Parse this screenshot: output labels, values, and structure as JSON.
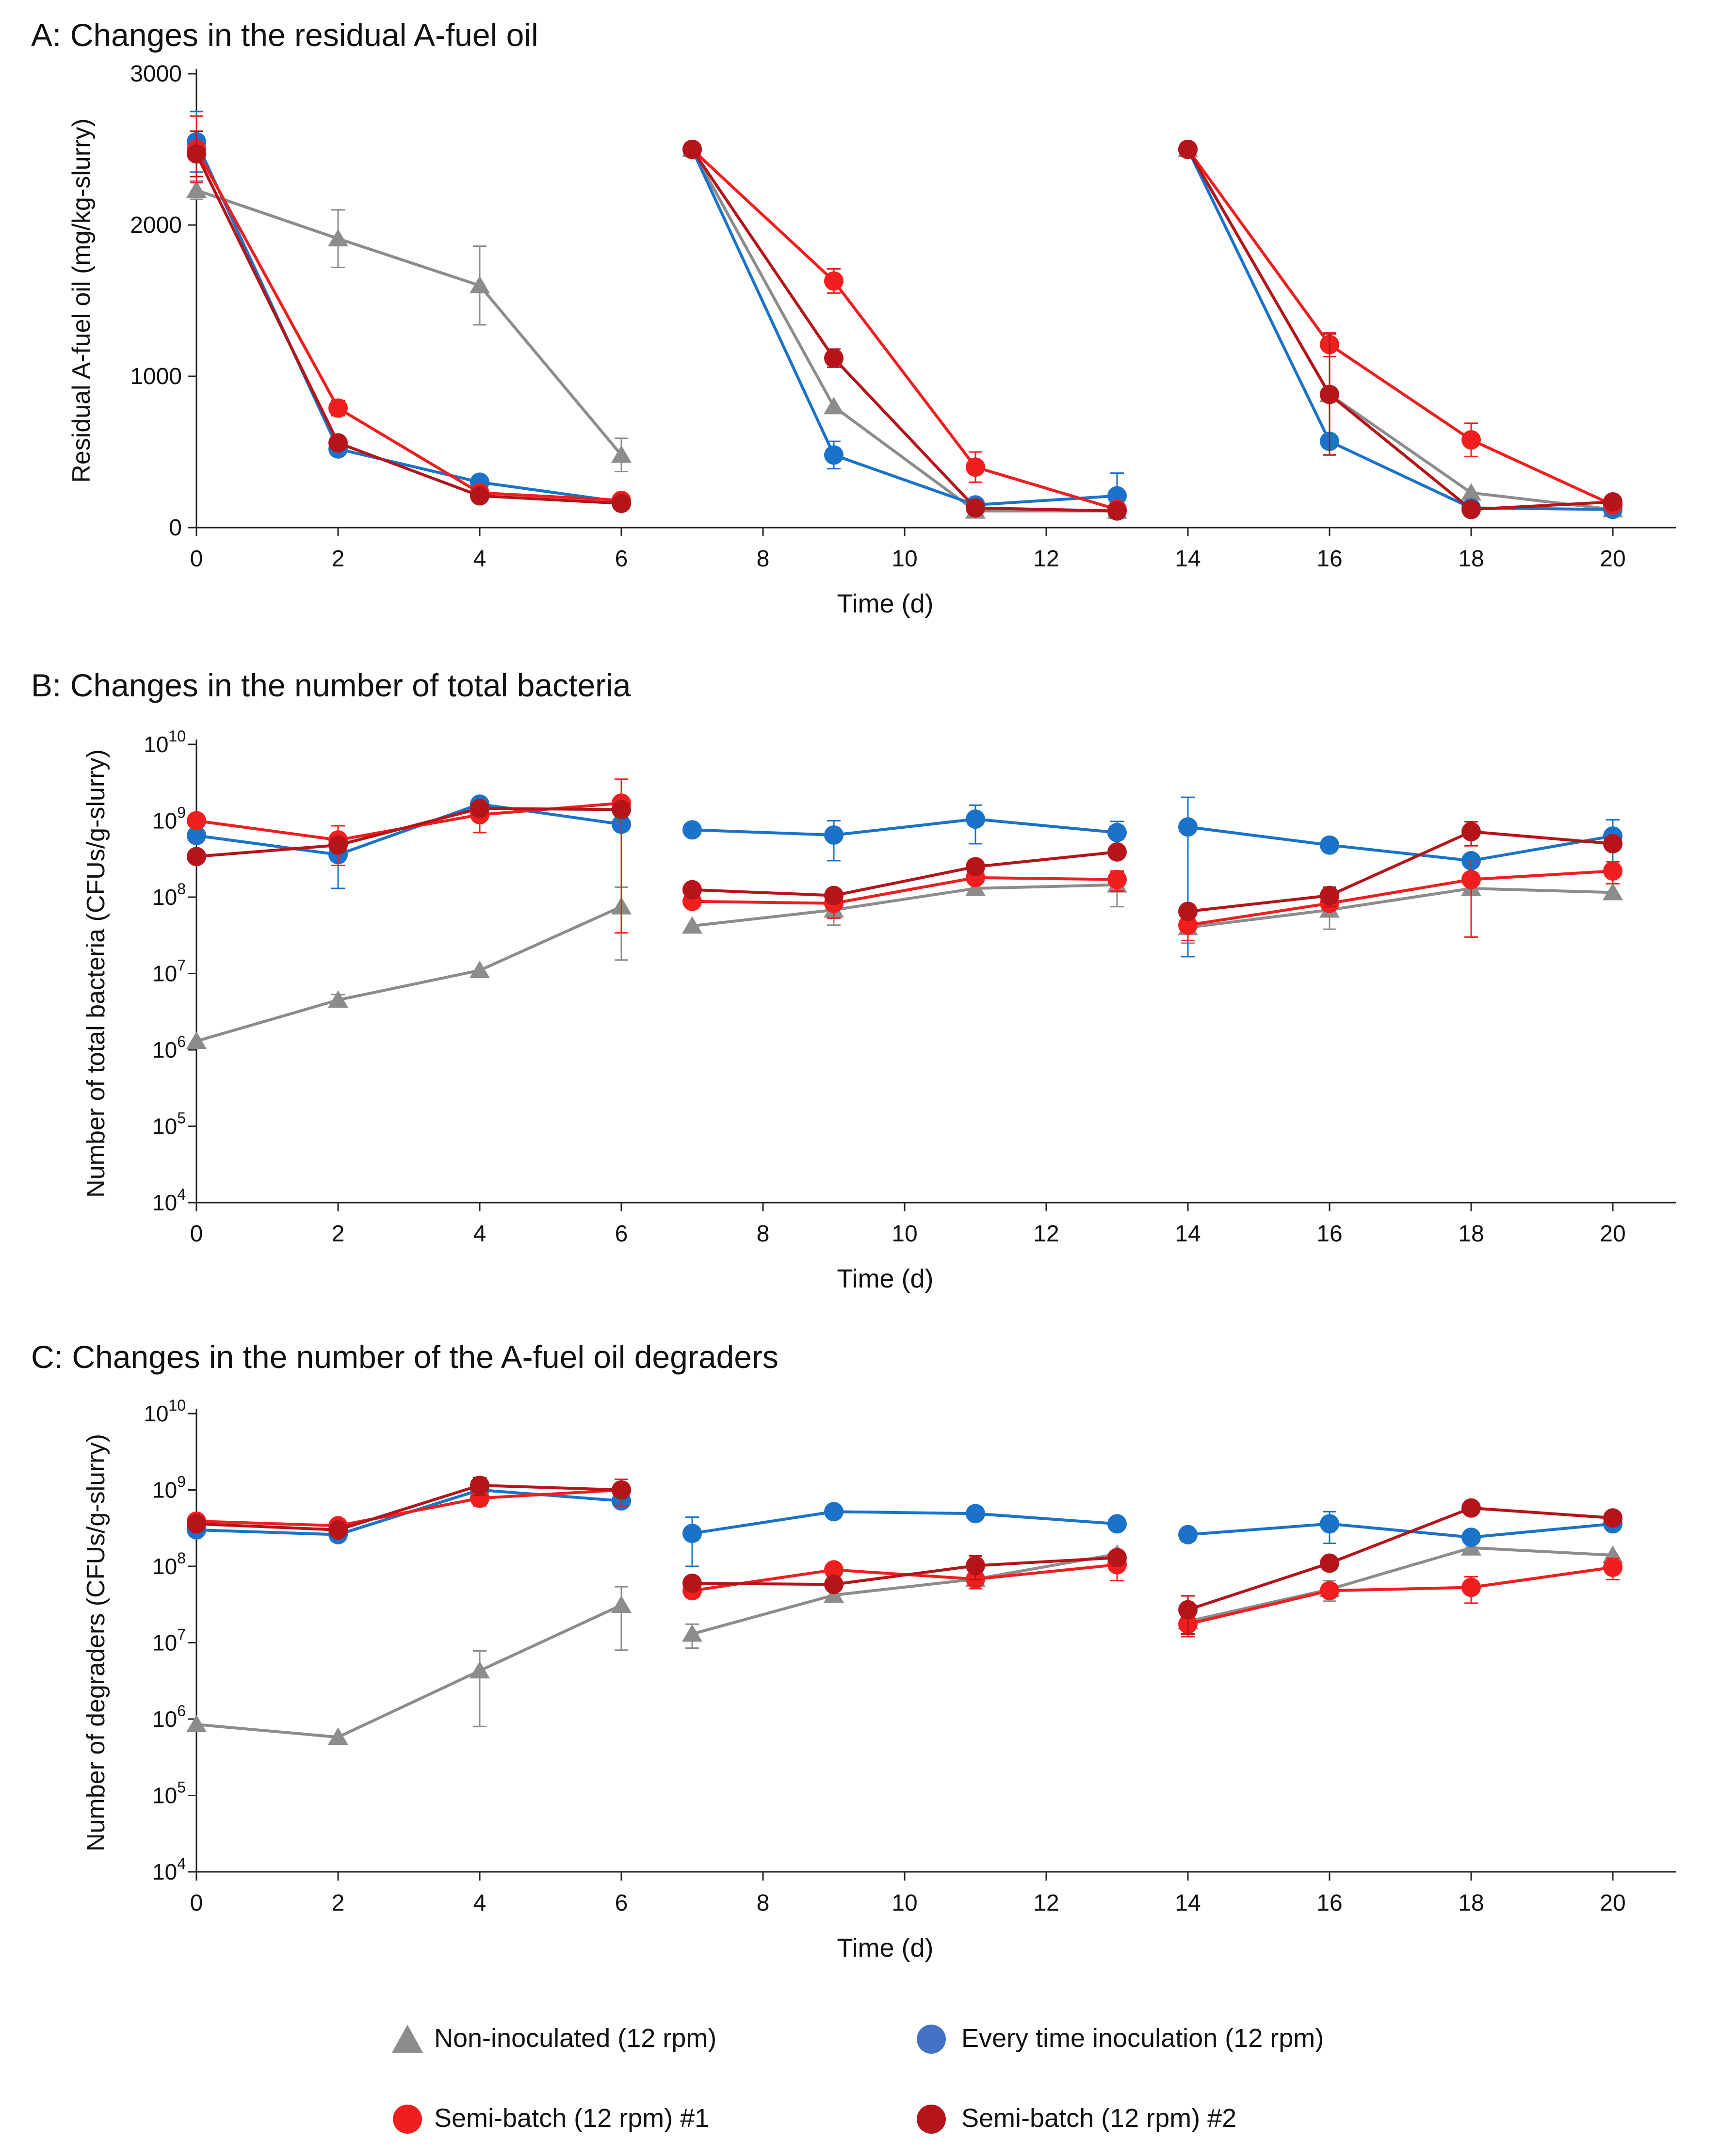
{
  "colors": {
    "non_inoculated": "#8c8c8c",
    "every_time": "#1a73c8",
    "semi1": "#f01e1e",
    "semi2": "#b4141a",
    "legend_every_time": "#4472c4"
  },
  "legend": {
    "non_inoculated": "Non-inoculated (12 rpm)",
    "every_time": "Every time inoculation (12 rpm)",
    "semi1": "Semi-batch (12 rpm) #1",
    "semi2": "Semi-batch (12 rpm) #2"
  },
  "chart_data": [
    {
      "id": "A",
      "type": "line",
      "title": "A: Changes in the residual A-fuel oil",
      "xlabel": "Time (d)",
      "ylabel": "Residual A-fuel oil (mg/kg-slurry)",
      "xlim": [
        0,
        21
      ],
      "xticks": [
        0,
        2,
        4,
        6,
        8,
        10,
        12,
        14,
        16,
        18,
        20
      ],
      "yscale": "linear",
      "ylim": [
        0,
        3000
      ],
      "yticks": [
        {
          "value": 0,
          "label": "0"
        },
        {
          "value": 1000,
          "label": "1000"
        },
        {
          "value": 2000,
          "label": "2000"
        },
        {
          "value": 3000,
          "label": "3000"
        }
      ],
      "series": [
        {
          "key": "non_inoculated",
          "marker": "triangle",
          "segments": [
            {
              "x": [
                0,
                2,
                4,
                6
              ],
              "y": [
                2230,
                1910,
                1600,
                480
              ],
              "err": [
                60,
                190,
                260,
                110
              ]
            },
            {
              "x": [
                7,
                9,
                11,
                13
              ],
              "y": [
                2500,
                800,
                110,
                110
              ],
              "err": [
                0,
                0,
                0,
                0
              ]
            },
            {
              "x": [
                14,
                16,
                18,
                20
              ],
              "y": [
                2500,
                880,
                230,
                120
              ],
              "err": [
                0,
                0,
                0,
                0
              ]
            }
          ]
        },
        {
          "key": "every_time",
          "marker": "circle",
          "segments": [
            {
              "x": [
                0,
                2,
                4,
                6
              ],
              "y": [
                2550,
                520,
                300,
                170
              ],
              "err": [
                200,
                0,
                0,
                0
              ]
            },
            {
              "x": [
                7,
                9,
                11,
                13
              ],
              "y": [
                2500,
                480,
                150,
                210
              ],
              "err": [
                0,
                90,
                0,
                150
              ]
            },
            {
              "x": [
                14,
                16,
                18,
                20
              ],
              "y": [
                2500,
                570,
                130,
                120
              ],
              "err": [
                0,
                0,
                0,
                0
              ]
            }
          ]
        },
        {
          "key": "semi1",
          "marker": "circle",
          "segments": [
            {
              "x": [
                0,
                2,
                4,
                6
              ],
              "y": [
                2500,
                790,
                230,
                180
              ],
              "err": [
                220,
                50,
                0,
                0
              ]
            },
            {
              "x": [
                7,
                9,
                11,
                13
              ],
              "y": [
                2500,
                1630,
                400,
                120
              ],
              "err": [
                0,
                80,
                100,
                0
              ]
            },
            {
              "x": [
                14,
                16,
                18,
                20
              ],
              "y": [
                2500,
                1210,
                580,
                150
              ],
              "err": [
                0,
                80,
                110,
                0
              ]
            }
          ]
        },
        {
          "key": "semi2",
          "marker": "circle",
          "segments": [
            {
              "x": [
                0,
                2,
                4,
                6
              ],
              "y": [
                2470,
                560,
                210,
                160
              ],
              "err": [
                150,
                0,
                0,
                0
              ]
            },
            {
              "x": [
                7,
                9,
                11,
                13
              ],
              "y": [
                2500,
                1120,
                130,
                110
              ],
              "err": [
                0,
                60,
                0,
                0
              ]
            },
            {
              "x": [
                14,
                16,
                18,
                20
              ],
              "y": [
                2500,
                880,
                120,
                170
              ],
              "err": [
                0,
                400,
                0,
                0
              ]
            }
          ]
        }
      ]
    },
    {
      "id": "B",
      "type": "line",
      "title": "B: Changes in the number of total bacteria",
      "xlabel": "Time (d)",
      "ylabel": "Number of total bacteria (CFUs/g-slurry)",
      "xlim": [
        0,
        21
      ],
      "xticks": [
        0,
        2,
        4,
        6,
        8,
        10,
        12,
        14,
        16,
        18,
        20
      ],
      "yscale": "log",
      "ylim": [
        4,
        10
      ],
      "yticks": [
        {
          "value": 4,
          "base": "10",
          "exp": "4"
        },
        {
          "value": 5,
          "base": "10",
          "exp": "5"
        },
        {
          "value": 6,
          "base": "10",
          "exp": "6"
        },
        {
          "value": 7,
          "base": "10",
          "exp": "7"
        },
        {
          "value": 8,
          "base": "10",
          "exp": "8"
        },
        {
          "value": 9,
          "base": "10",
          "exp": "9"
        },
        {
          "value": 10,
          "base": "10",
          "exp": "10"
        }
      ],
      "series": [
        {
          "key": "non_inoculated",
          "marker": "triangle",
          "segments": [
            {
              "x": [
                0,
                2,
                4,
                6
              ],
              "y": [
                1300000.0,
                4500000.0,
                11000000.0,
                75000000.0
              ],
              "err": [
                0,
                800000.0,
                0,
                60000000.0
              ]
            },
            {
              "x": [
                7,
                9,
                11,
                13
              ],
              "y": [
                42000000.0,
                68000000.0,
                130000000.0,
                145000000.0
              ],
              "err": [
                0,
                25000000.0,
                0,
                70000000.0
              ]
            },
            {
              "x": [
                14,
                16,
                18,
                20
              ],
              "y": [
                40000000.0,
                68000000.0,
                130000000.0,
                115000000.0
              ],
              "err": [
                15000000.0,
                30000000.0,
                0,
                0
              ]
            }
          ]
        },
        {
          "key": "every_time",
          "marker": "circle",
          "segments": [
            {
              "x": [
                0,
                2,
                4,
                6
              ],
              "y": [
                640000000.0,
                360000000.0,
                1650000000.0,
                900000000.0
              ],
              "err": [
                0,
                230000000.0,
                0,
                0
              ]
            },
            {
              "x": [
                7,
                9,
                11,
                13
              ],
              "y": [
                760000000.0,
                650000000.0,
                1050000000.0,
                700000000.0
              ],
              "err": [
                0,
                350000000.0,
                550000000.0,
                280000000.0
              ]
            },
            {
              "x": [
                14,
                16,
                18,
                20
              ],
              "y": [
                830000000.0,
                480000000.0,
                300000000.0,
                630000000.0
              ],
              "err": [
                1200000000.0,
                0,
                0,
                400000000.0
              ]
            }
          ]
        },
        {
          "key": "semi1",
          "marker": "circle",
          "segments": [
            {
              "x": [
                0,
                2,
                4,
                6
              ],
              "y": [
                1000000000.0,
                560000000.0,
                1200000000.0,
                1700000000.0
              ],
              "err": [
                0,
                300000000.0,
                500000000.0,
                1800000000.0
              ]
            },
            {
              "x": [
                7,
                9,
                11,
                13
              ],
              "y": [
                88000000.0,
                83000000.0,
                180000000.0,
                170000000.0
              ],
              "err": [
                0,
                30000000.0,
                0,
                50000000.0
              ]
            },
            {
              "x": [
                14,
                16,
                18,
                20
              ],
              "y": [
                43000000.0,
                83000000.0,
                170000000.0,
                220000000.0
              ],
              "err": [
                16000000.0,
                0,
                140000000.0,
                70000000.0
              ]
            }
          ]
        },
        {
          "key": "semi2",
          "marker": "circle",
          "segments": [
            {
              "x": [
                0,
                2,
                4,
                6
              ],
              "y": [
                340000000.0,
                480000000.0,
                1450000000.0,
                1400000000.0
              ],
              "err": [
                0,
                0,
                0,
                0
              ]
            },
            {
              "x": [
                7,
                9,
                11,
                13
              ],
              "y": [
                125000000.0,
                105000000.0,
                250000000.0,
                390000000.0
              ],
              "err": [
                0,
                0,
                0,
                0
              ]
            },
            {
              "x": [
                14,
                16,
                18,
                20
              ],
              "y": [
                65000000.0,
                105000000.0,
                720000000.0,
                500000000.0
              ],
              "err": [
                0,
                30000000.0,
                250000000.0,
                0
              ]
            }
          ]
        }
      ]
    },
    {
      "id": "C",
      "type": "line",
      "title": "C: Changes in the number of the A-fuel oil degraders",
      "xlabel": "Time (d)",
      "ylabel": "Number of degraders (CFUs/g-slurry)",
      "xlim": [
        0,
        21
      ],
      "xticks": [
        0,
        2,
        4,
        6,
        8,
        10,
        12,
        14,
        16,
        18,
        20
      ],
      "yscale": "log",
      "ylim": [
        4,
        10
      ],
      "yticks": [
        {
          "value": 4,
          "base": "10",
          "exp": "4"
        },
        {
          "value": 5,
          "base": "10",
          "exp": "5"
        },
        {
          "value": 6,
          "base": "10",
          "exp": "6"
        },
        {
          "value": 7,
          "base": "10",
          "exp": "7"
        },
        {
          "value": 8,
          "base": "10",
          "exp": "8"
        },
        {
          "value": 9,
          "base": "10",
          "exp": "9"
        },
        {
          "value": 10,
          "base": "10",
          "exp": "10"
        }
      ],
      "series": [
        {
          "key": "non_inoculated",
          "marker": "triangle",
          "segments": [
            {
              "x": [
                0,
                2,
                4,
                6
              ],
              "y": [
                850000.0,
                580000.0,
                4300000.0,
                31000000.0
              ],
              "err": [
                0,
                0,
                3500000.0,
                23000000.0
              ]
            },
            {
              "x": [
                7,
                9,
                11,
                13
              ],
              "y": [
                13000000.0,
                42000000.0,
                68000000.0,
                145000000.0
              ],
              "err": [
                4500000.0,
                0,
                0,
                0
              ]
            },
            {
              "x": [
                14,
                16,
                18,
                20
              ],
              "y": [
                19000000.0,
                50000000.0,
                175000000.0,
                140000000.0
              ],
              "err": [
                0,
                15000000.0,
                0,
                0
              ]
            }
          ]
        },
        {
          "key": "every_time",
          "marker": "circle",
          "segments": [
            {
              "x": [
                0,
                2,
                4,
                6
              ],
              "y": [
                300000000.0,
                260000000.0,
                1000000000.0,
                720000000.0
              ],
              "err": [
                0,
                0,
                0,
                0
              ]
            },
            {
              "x": [
                7,
                9,
                11,
                13
              ],
              "y": [
                270000000.0,
                520000000.0,
                490000000.0,
                360000000.0
              ],
              "err": [
                170000000.0,
                0,
                0,
                0
              ]
            },
            {
              "x": [
                14,
                16,
                18,
                20
              ],
              "y": [
                260000000.0,
                360000000.0,
                240000000.0,
                360000000.0
              ],
              "err": [
                0,
                160000000.0,
                0,
                0
              ]
            }
          ]
        },
        {
          "key": "semi1",
          "marker": "circle",
          "segments": [
            {
              "x": [
                0,
                2,
                4,
                6
              ],
              "y": [
                390000000.0,
                340000000.0,
                780000000.0,
                1000000000.0
              ],
              "err": [
                0,
                0,
                160000000.0,
                380000000.0
              ]
            },
            {
              "x": [
                7,
                9,
                11,
                13
              ],
              "y": [
                48000000.0,
                90000000.0,
                68000000.0,
                105000000.0
              ],
              "err": [
                0,
                0,
                17000000.0,
                40000000.0
              ]
            },
            {
              "x": [
                14,
                16,
                18,
                20
              ],
              "y": [
                17500000.0,
                48000000.0,
                53000000.0,
                97000000.0
              ],
              "err": [
                5500000.0,
                0,
                20000000.0,
                30000000.0
              ]
            }
          ]
        },
        {
          "key": "semi2",
          "marker": "circle",
          "segments": [
            {
              "x": [
                0,
                2,
                4,
                6
              ],
              "y": [
                360000000.0,
                300000000.0,
                1150000000.0,
                1000000000.0
              ],
              "err": [
                0,
                0,
                300000000.0,
                0
              ]
            },
            {
              "x": [
                7,
                9,
                11,
                13
              ],
              "y": [
                60000000.0,
                58000000.0,
                102000000.0,
                130000000.0
              ],
              "err": [
                0,
                0,
                35000000.0,
                0
              ]
            },
            {
              "x": [
                14,
                16,
                18,
                20
              ],
              "y": [
                27000000.0,
                110000000.0,
                580000000.0,
                430000000.0
              ],
              "err": [
                14000000.0,
                0,
                0,
                0
              ]
            }
          ]
        }
      ]
    }
  ]
}
